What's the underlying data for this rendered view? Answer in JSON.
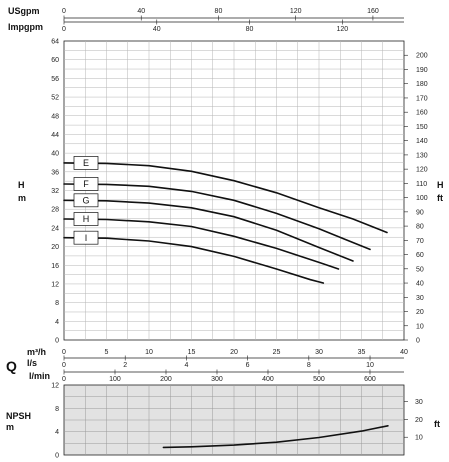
{
  "chart_data": [
    {
      "type": "line",
      "title": "",
      "top_axes": [
        {
          "label": "USgpm",
          "ticks": [
            "0",
            "40",
            "80",
            "120",
            "160"
          ],
          "range": [
            0,
            176.1
          ]
        },
        {
          "label": "Impgpm",
          "ticks": [
            "0",
            "40",
            "80",
            "120"
          ],
          "range": [
            0,
            146.6
          ]
        }
      ],
      "y_left": {
        "label_line1": "H",
        "label_line2": "m",
        "range": [
          0,
          64
        ],
        "ticks": [
          "0",
          "4",
          "8",
          "12",
          "16",
          "20",
          "24",
          "28",
          "32",
          "36",
          "40",
          "44",
          "48",
          "52",
          "56",
          "60",
          "64"
        ]
      },
      "y_right": {
        "label_line1": "H",
        "label_line2": "ft",
        "range": [
          0,
          210
        ],
        "ticks": [
          "0",
          "10",
          "20",
          "30",
          "40",
          "50",
          "60",
          "70",
          "80",
          "90",
          "100",
          "110",
          "120",
          "130",
          "140",
          "150",
          "160",
          "170",
          "180",
          "190",
          "200"
        ]
      },
      "grid": true,
      "series": [
        {
          "name": "E",
          "x": [
            0,
            5,
            10,
            15,
            20,
            25,
            30,
            34,
            38
          ],
          "y": [
            37.9,
            37.8,
            37.3,
            36.1,
            34.1,
            31.5,
            28.3,
            25.9,
            23.0
          ]
        },
        {
          "name": "F",
          "x": [
            0,
            5,
            10,
            15,
            20,
            25,
            30,
            33,
            36
          ],
          "y": [
            33.4,
            33.3,
            32.9,
            31.8,
            29.9,
            27.1,
            23.8,
            21.6,
            19.4
          ]
        },
        {
          "name": "G",
          "x": [
            0,
            5,
            10,
            15,
            20,
            25,
            30,
            34
          ],
          "y": [
            29.9,
            29.8,
            29.3,
            28.3,
            26.4,
            23.5,
            19.8,
            16.9
          ]
        },
        {
          "name": "H",
          "x": [
            0,
            5,
            10,
            15,
            20,
            25,
            30,
            32.3
          ],
          "y": [
            25.9,
            25.8,
            25.3,
            24.3,
            22.2,
            19.6,
            16.6,
            15.2
          ]
        },
        {
          "name": "I",
          "x": [
            0,
            5,
            10,
            15,
            20,
            25,
            29,
            30.5
          ],
          "y": [
            21.9,
            21.8,
            21.2,
            20.0,
            17.9,
            15.2,
            12.9,
            12.2
          ]
        }
      ]
    },
    {
      "type": "line",
      "title": "",
      "section_label": "Q",
      "x_axes": [
        {
          "label_line1": "m³/h",
          "ticks": [
            "0",
            "5",
            "10",
            "15",
            "20",
            "25",
            "30",
            "35",
            "40"
          ],
          "range": [
            0,
            40
          ]
        },
        {
          "label_line1": "l/s",
          "ticks": [
            "0",
            "2",
            "4",
            "6",
            "8",
            "10"
          ],
          "range": [
            0,
            11.11
          ]
        },
        {
          "label_line1": "l/min",
          "ticks": [
            "0",
            "100",
            "200",
            "300",
            "400",
            "500",
            "600"
          ],
          "range": [
            0,
            666.7
          ]
        }
      ],
      "y_left": {
        "label_line1": "NPSH",
        "label_line2": "m",
        "range": [
          0,
          12
        ],
        "ticks": [
          "0",
          "4",
          "8",
          "12"
        ]
      },
      "y_right": {
        "label_line1": "ft",
        "range": [
          0,
          39.37
        ],
        "ticks": [
          "10",
          "20",
          "30"
        ]
      },
      "grid": true,
      "series": [
        {
          "name": "",
          "x": [
            11.7,
            15,
            20,
            25,
            30,
            35,
            38.1
          ],
          "y": [
            1.3,
            1.4,
            1.7,
            2.2,
            3.0,
            4.1,
            5.0
          ]
        }
      ]
    }
  ]
}
